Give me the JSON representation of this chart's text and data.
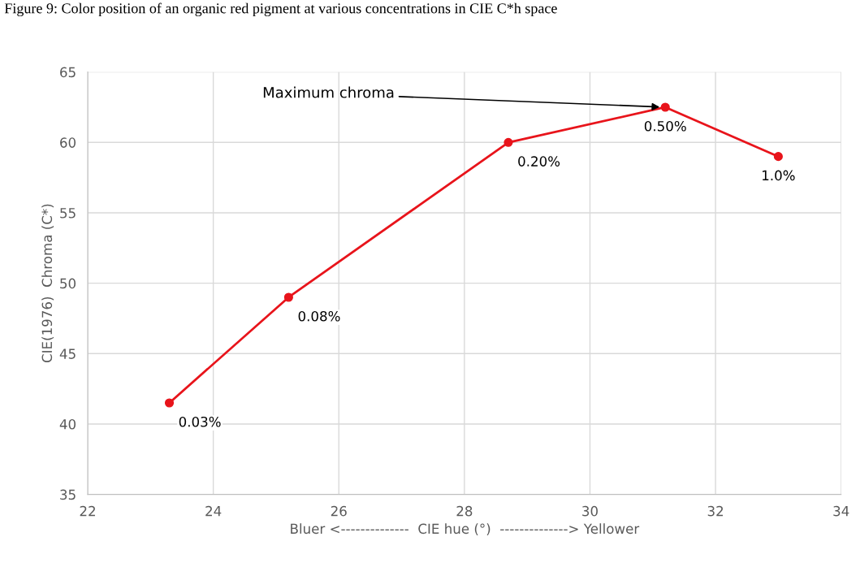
{
  "chart_data": {
    "type": "line",
    "title": "Figure 9: Color position of an organic red pigment at various concentrations in CIE C*h space",
    "xlabel": "Bluer <--------------  CIE hue (°)  --------------> Yellower",
    "ylabel": "CIE(1976)  Chroma (C*)",
    "x": [
      23.3,
      25.2,
      28.7,
      31.2,
      33.0
    ],
    "series": [
      {
        "color": "#e8141b",
        "values": [
          41.5,
          49.0,
          60.0,
          62.5,
          59.0
        ]
      }
    ],
    "value_labels": [
      "0.03%",
      "0.08%",
      "0.20%",
      "0.50%",
      "1.0%"
    ],
    "annotations": [
      {
        "text": "Maximum chroma",
        "x": 31.2,
        "y": 62.5
      }
    ],
    "xlim": [
      22,
      34
    ],
    "xticks": [
      22,
      24,
      26,
      28,
      30,
      32,
      34
    ],
    "ylim": [
      35,
      65
    ],
    "yticks": [
      35,
      40,
      45,
      50,
      55,
      60,
      65
    ],
    "grid": true,
    "marker": "circle",
    "line_style": "solid",
    "legend": false
  }
}
